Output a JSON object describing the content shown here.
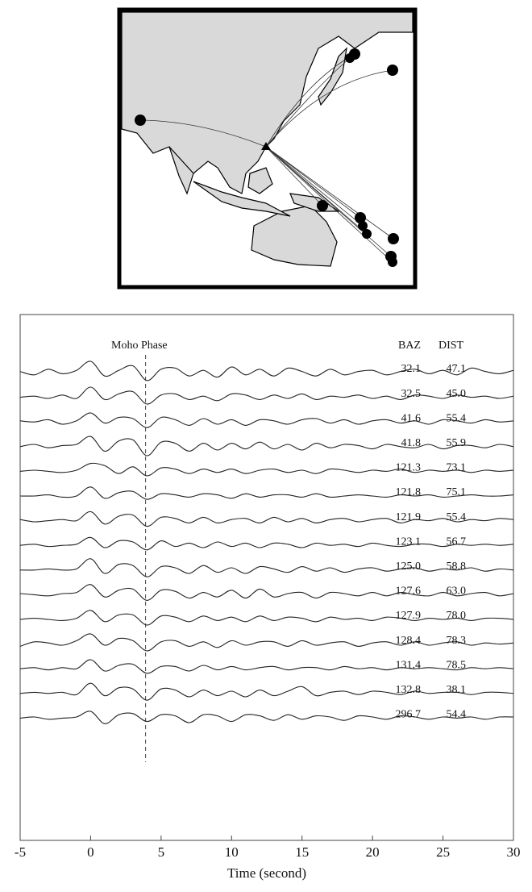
{
  "chart_data": {
    "type": "line",
    "xlabel": "Time (second)",
    "xlim": [
      -5,
      30
    ],
    "xticks": [
      -5,
      0,
      5,
      10,
      15,
      20,
      25,
      30
    ],
    "columns": [
      "BAZ",
      "DIST"
    ],
    "moho_line": {
      "label": "Moho Phase",
      "x": 3.9
    },
    "color": "#222222",
    "x": [
      -5,
      -4,
      -3,
      -2,
      -1,
      0,
      1,
      2,
      3,
      4,
      5,
      6,
      7,
      8,
      9,
      10,
      11,
      12,
      13,
      14,
      15,
      16,
      17,
      18,
      19,
      20,
      21,
      22,
      23,
      24,
      25,
      26,
      27,
      28,
      29,
      30
    ],
    "series": [
      {
        "baz": 32.1,
        "dist": 47.1,
        "values": [
          0.1,
          -0.2,
          0.3,
          -0.1,
          0.2,
          1.0,
          -0.3,
          0.2,
          0.6,
          -0.7,
          0.3,
          0.4,
          -0.3,
          0.2,
          -0.4,
          0.5,
          -0.2,
          0.3,
          -0.3,
          0.4,
          0.1,
          -0.3,
          0.3,
          -0.2,
          0.1,
          0.2,
          -0.2,
          0.1,
          0.3,
          -0.1,
          0.2,
          -0.2,
          0.4,
          0.1,
          -0.1,
          0.2
        ]
      },
      {
        "baz": 32.5,
        "dist": 45,
        "dist_label": "45.0",
        "values": [
          0.0,
          0.1,
          -0.1,
          0.2,
          -0.1,
          0.9,
          -0.2,
          0.3,
          0.5,
          -0.6,
          0.2,
          0.3,
          -0.2,
          0.1,
          -0.3,
          0.3,
          0.2,
          -0.2,
          0.2,
          -0.1,
          0.3,
          -0.2,
          0.1,
          0.0,
          0.2,
          -0.1,
          0.1,
          -0.2,
          0.2,
          0.1,
          -0.1,
          0.2,
          0.0,
          0.1,
          -0.1,
          0.1
        ]
      },
      {
        "baz": 41.6,
        "dist": 55.4,
        "values": [
          0.1,
          0.0,
          0.2,
          -0.2,
          0.1,
          0.8,
          -0.1,
          0.4,
          0.3,
          -0.5,
          0.4,
          0.2,
          -0.3,
          0.3,
          -0.2,
          0.2,
          -0.3,
          0.2,
          0.1,
          -0.2,
          0.2,
          0.3,
          -0.1,
          0.2,
          -0.2,
          0.1,
          0.2,
          -0.1,
          0.1,
          -0.2,
          0.2,
          0.1,
          -0.1,
          0.2,
          0.0,
          0.1
        ]
      },
      {
        "baz": 41.8,
        "dist": 55.9,
        "values": [
          0.0,
          0.2,
          -0.1,
          0.1,
          0.2,
          0.9,
          -0.4,
          0.5,
          0.6,
          -0.8,
          0.4,
          0.3,
          -0.4,
          0.3,
          -0.3,
          0.3,
          -0.2,
          0.4,
          -0.2,
          0.2,
          -0.3,
          0.3,
          -0.1,
          0.2,
          0.1,
          -0.2,
          0.2,
          0.0,
          -0.1,
          0.2,
          -0.2,
          0.1,
          0.1,
          -0.1,
          0.2,
          0.0
        ]
      },
      {
        "baz": 121.3,
        "dist": 73.1,
        "values": [
          0.0,
          0.1,
          0.0,
          -0.1,
          0.1,
          0.7,
          0.5,
          -0.2,
          0.4,
          -0.4,
          0.3,
          0.2,
          -0.2,
          0.2,
          -0.1,
          0.2,
          -0.2,
          0.1,
          0.2,
          -0.1,
          0.1,
          -0.2,
          0.2,
          0.1,
          -0.1,
          0.1,
          0.0,
          0.2,
          -0.1,
          0.1,
          0.0,
          0.1,
          -0.1,
          0.1,
          0.0,
          0.1
        ]
      },
      {
        "baz": 121.8,
        "dist": 75.1,
        "values": [
          0.0,
          0.0,
          0.1,
          -0.1,
          0.0,
          0.8,
          -0.2,
          0.3,
          0.4,
          -0.3,
          0.2,
          0.1,
          -0.1,
          0.2,
          0.1,
          -0.2,
          0.2,
          -0.1,
          0.1,
          0.1,
          -0.1,
          0.2,
          -0.1,
          0.0,
          0.1,
          0.0,
          -0.1,
          0.1,
          0.0,
          0.1,
          -0.1,
          0.0,
          0.1,
          0.0,
          0.0,
          0.1
        ]
      },
      {
        "baz": 121.9,
        "dist": 55.4,
        "values": [
          0.1,
          -0.1,
          0.0,
          0.1,
          0.0,
          0.8,
          -0.3,
          0.4,
          0.5,
          -0.5,
          0.3,
          0.2,
          -0.2,
          0.3,
          -0.2,
          0.1,
          0.2,
          -0.2,
          0.3,
          -0.1,
          0.2,
          -0.2,
          0.1,
          0.2,
          -0.1,
          0.1,
          0.2,
          -0.2,
          0.1,
          0.0,
          0.2,
          -0.1,
          0.1,
          0.0,
          0.2,
          0.1
        ]
      },
      {
        "baz": 123.1,
        "dist": 56.7,
        "values": [
          0.0,
          0.1,
          -0.1,
          0.0,
          0.1,
          0.7,
          -0.2,
          0.4,
          0.3,
          -0.4,
          0.4,
          -0.1,
          0.2,
          -0.2,
          0.3,
          -0.1,
          0.2,
          -0.2,
          0.2,
          0.1,
          -0.2,
          0.2,
          0.0,
          0.1,
          -0.1,
          0.2,
          0.0,
          -0.1,
          0.1,
          0.1,
          -0.1,
          0.1,
          0.0,
          0.1,
          0.0,
          0.1
        ]
      },
      {
        "baz": 125,
        "baz_label": "125.0",
        "dist": 58.8,
        "values": [
          0.0,
          0.0,
          0.1,
          0.0,
          0.1,
          1.0,
          -0.3,
          0.5,
          0.4,
          -0.6,
          0.3,
          0.2,
          -0.3,
          0.4,
          -0.2,
          0.2,
          -0.3,
          0.3,
          0.1,
          -0.2,
          0.3,
          -0.1,
          0.2,
          -0.2,
          0.1,
          0.2,
          -0.1,
          0.1,
          0.2,
          -0.1,
          0.1,
          0.0,
          0.2,
          -0.1,
          0.1,
          0.0
        ]
      },
      {
        "baz": 127.6,
        "dist": 63,
        "dist_label": "63.0",
        "values": [
          0.1,
          0.0,
          -0.1,
          0.1,
          0.2,
          0.9,
          -0.2,
          0.4,
          0.5,
          -0.5,
          0.4,
          0.3,
          -0.3,
          0.2,
          -0.2,
          0.4,
          -0.3,
          0.5,
          -0.2,
          0.1,
          0.2,
          -0.3,
          0.2,
          0.1,
          -0.1,
          0.2,
          -0.1,
          0.2,
          0.0,
          -0.1,
          0.2,
          -0.1,
          0.1,
          0.2,
          -0.1,
          0.1
        ]
      },
      {
        "baz": 127.9,
        "dist": 78,
        "dist_label": "78.0",
        "values": [
          0.0,
          0.1,
          0.0,
          -0.1,
          0.1,
          0.8,
          -0.2,
          0.4,
          0.4,
          -0.5,
          0.3,
          0.2,
          -0.2,
          0.3,
          -0.1,
          0.2,
          -0.2,
          0.3,
          -0.1,
          0.2,
          0.1,
          -0.2,
          0.2,
          0.0,
          0.1,
          -0.1,
          0.2,
          0.1,
          -0.1,
          0.1,
          0.0,
          0.1,
          -0.1,
          0.1,
          0.1,
          0.0
        ]
      },
      {
        "baz": 128.4,
        "dist": 78.3,
        "values": [
          -0.2,
          0.2,
          0.1,
          -0.1,
          0.3,
          0.9,
          -0.1,
          0.5,
          0.3,
          -0.6,
          0.2,
          0.3,
          -0.2,
          0.2,
          -0.3,
          0.3,
          -0.1,
          0.2,
          0.2,
          -0.2,
          0.3,
          -0.1,
          0.1,
          0.2,
          -0.2,
          0.1,
          0.2,
          -0.1,
          0.2,
          -0.1,
          0.1,
          0.2,
          -0.1,
          0.1,
          0.0,
          0.1
        ]
      },
      {
        "baz": 131.4,
        "dist": 78.5,
        "values": [
          0.0,
          0.1,
          -0.1,
          0.1,
          0.0,
          0.8,
          -0.2,
          0.3,
          0.4,
          -0.4,
          0.2,
          0.2,
          -0.2,
          0.3,
          -0.1,
          0.2,
          -0.1,
          0.1,
          0.2,
          -0.1,
          0.1,
          0.1,
          -0.1,
          0.2,
          0.0,
          0.1,
          -0.1,
          0.1,
          0.0,
          0.1,
          0.0,
          -0.1,
          0.1,
          0.0,
          0.1,
          0.0
        ]
      },
      {
        "baz": 132.8,
        "dist": 38.1,
        "values": [
          0.0,
          0.1,
          0.0,
          0.1,
          -0.1,
          0.9,
          -0.2,
          0.5,
          0.4,
          -0.6,
          0.4,
          0.3,
          -0.3,
          0.3,
          -0.2,
          0.2,
          -0.3,
          0.3,
          -0.2,
          0.2,
          0.6,
          -0.2,
          0.1,
          0.2,
          -0.1,
          0.2,
          0.1,
          -0.1,
          0.2,
          0.0,
          0.1,
          0.1,
          -0.1,
          0.1,
          0.1,
          0.0
        ]
      },
      {
        "baz": 296.7,
        "dist": 54.4,
        "values": [
          0.0,
          0.1,
          -0.1,
          0.0,
          0.1,
          0.6,
          -0.5,
          0.3,
          0.4,
          -0.3,
          0.3,
          0.2,
          -0.4,
          0.3,
          0.2,
          -0.3,
          0.3,
          0.2,
          -0.2,
          0.3,
          -0.1,
          0.2,
          0.1,
          -0.2,
          0.2,
          0.1,
          -0.1,
          0.2,
          0.1,
          -0.1,
          0.1,
          0.0,
          0.1,
          -0.1,
          0.1,
          0.1
        ]
      }
    ]
  }
}
